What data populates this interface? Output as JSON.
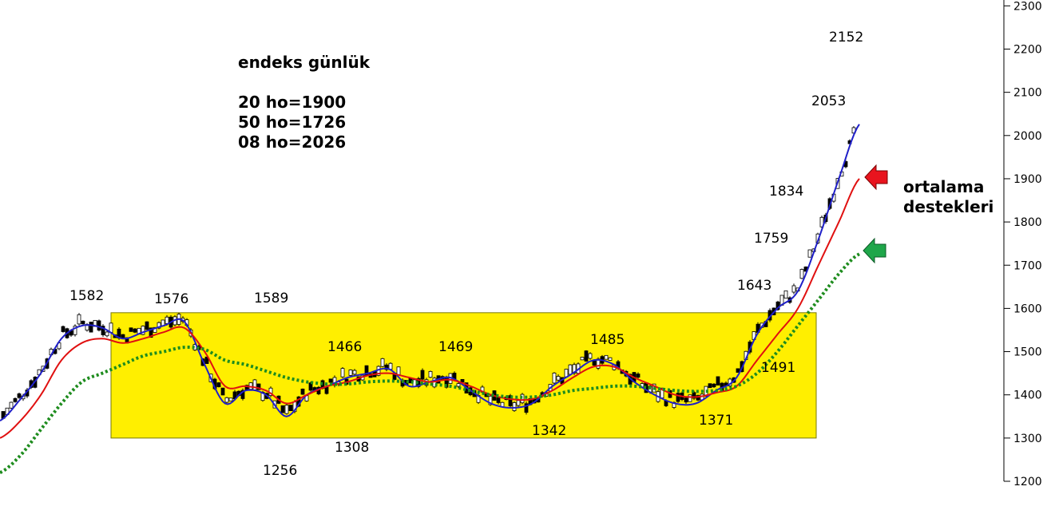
{
  "chart_data": {
    "type": "line",
    "title": "endeks günlük",
    "subtitle_lines": [
      "20 ho=1900",
      "50 ho=1726",
      "08 ho=2026"
    ],
    "side_note": "ortalama destekleri",
    "ylim": [
      1200,
      2300
    ],
    "y_ticks": [
      "1200",
      "1300",
      "1400",
      "1500",
      "1600",
      "1700",
      "1800",
      "1900",
      "2000",
      "2100",
      "2200",
      "2300"
    ],
    "grid": false,
    "consolidation_range": [
      1300,
      1590
    ],
    "price_labels": [
      "1582",
      "1576",
      "1589",
      "1466",
      "1469",
      "1485",
      "1256",
      "1308",
      "1342",
      "1371",
      "1491",
      "1643",
      "1759",
      "1834",
      "2053",
      "2152"
    ],
    "series": [
      {
        "name": "08 ho",
        "color": "#1f1fc8",
        "values": [
          1340,
          1390,
          1450,
          1530,
          1560,
          1555,
          1530,
          1545,
          1560,
          1570,
          1470,
          1380,
          1410,
          1400,
          1350,
          1400,
          1420,
          1440,
          1450,
          1460,
          1420,
          1430,
          1440,
          1410,
          1380,
          1370,
          1380,
          1420,
          1450,
          1480,
          1470,
          1430,
          1400,
          1380,
          1380,
          1410,
          1440,
          1540,
          1600,
          1640,
          1760,
          1900,
          2026
        ]
      },
      {
        "name": "20 ho",
        "color": "#e01010",
        "values": [
          1300,
          1340,
          1400,
          1480,
          1520,
          1530,
          1520,
          1530,
          1545,
          1555,
          1500,
          1420,
          1420,
          1410,
          1380,
          1400,
          1420,
          1430,
          1445,
          1450,
          1440,
          1430,
          1435,
          1420,
          1400,
          1390,
          1390,
          1410,
          1440,
          1465,
          1465,
          1440,
          1420,
          1400,
          1395,
          1405,
          1420,
          1480,
          1540,
          1600,
          1700,
          1800,
          1900
        ]
      },
      {
        "name": "50 ho",
        "color": "#1e8c1e",
        "values": [
          1220,
          1260,
          1320,
          1380,
          1430,
          1450,
          1470,
          1490,
          1500,
          1510,
          1505,
          1480,
          1470,
          1455,
          1440,
          1430,
          1425,
          1425,
          1430,
          1432,
          1430,
          1425,
          1420,
          1410,
          1400,
          1395,
          1395,
          1400,
          1410,
          1415,
          1420,
          1420,
          1415,
          1410,
          1408,
          1410,
          1420,
          1450,
          1500,
          1560,
          1620,
          1680,
          1726
        ]
      }
    ],
    "arrows": [
      {
        "color": "#e8141e",
        "points_to": "20 ho"
      },
      {
        "color": "#1fa64a",
        "points_to": "50 ho"
      }
    ]
  }
}
